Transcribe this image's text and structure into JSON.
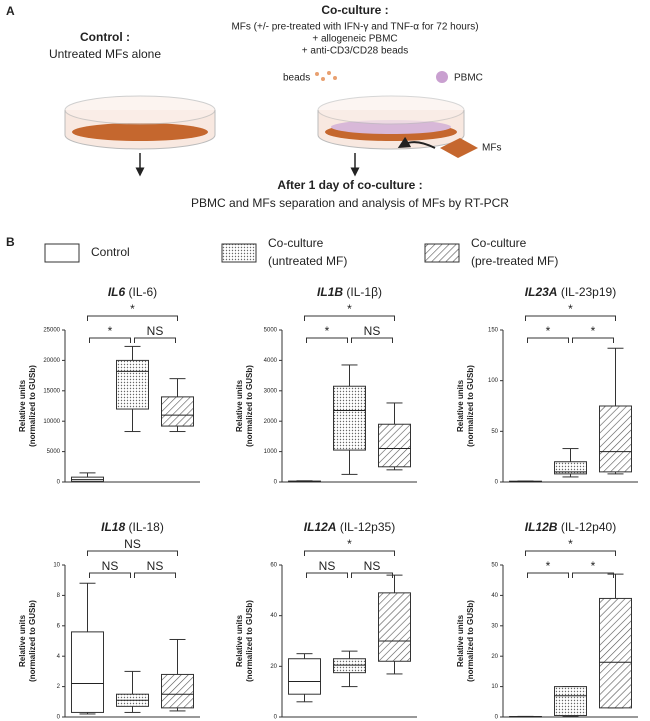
{
  "panel_a": {
    "label": "A",
    "control_title": "Control :",
    "control_text": "Untreated MFs alone",
    "coculture_title": "Co-culture :",
    "coculture_lines": [
      "MFs (+/- pre-treated with IFN-γ and TNF-α for 72 hours)",
      "+ allogeneic PBMC",
      "+ anti-CD3/CD28 beads"
    ],
    "beads": "beads",
    "pbmc": "PBMC",
    "mfs": "MFs",
    "after_title": "After 1 day of co-culture :",
    "after_text": "PBMC and MFs separation and analysis of MFs by RT-PCR"
  },
  "panel_b": {
    "label": "B",
    "legend": [
      {
        "name": [
          "Control"
        ],
        "pattern": "none"
      },
      {
        "name": [
          "Co-culture",
          "(untreated MF)"
        ],
        "pattern": "dots"
      },
      {
        "name": [
          "Co-culture",
          "(pre-treated MF)"
        ],
        "pattern": "hatch"
      }
    ]
  },
  "chart_data": [
    {
      "type": "box",
      "title": "IL6",
      "subtitle": "(IL-6)",
      "ylabel": [
        "Relative units",
        "(normalized to GUSb)"
      ],
      "categories": [
        null,
        null,
        null
      ],
      "ylim": [
        0,
        25000
      ],
      "yticks": [
        0,
        5000,
        10000,
        15000,
        20000,
        25000
      ],
      "boxes": [
        {
          "min": 0,
          "q1": 100,
          "median": 400,
          "q3": 800,
          "max": 1500
        },
        {
          "min": 8300,
          "q1": 12000,
          "median": 18200,
          "q3": 20000,
          "max": 22300
        },
        {
          "min": 8300,
          "q1": 9200,
          "median": 11000,
          "q3": 14000,
          "max": 17000
        }
      ],
      "comparisons": [
        {
          "groups": [
            0,
            1
          ],
          "label": "*"
        },
        {
          "groups": [
            1,
            2
          ],
          "label": "NS"
        },
        {
          "groups": [
            0,
            2
          ],
          "label": "*"
        }
      ]
    },
    {
      "type": "box",
      "title": "IL1B",
      "subtitle": "(IL-1β)",
      "ylabel": [
        "Relative units",
        "(normalized to GUSb)"
      ],
      "categories": [
        null,
        null,
        null
      ],
      "ylim": [
        0,
        5000
      ],
      "yticks": [
        0,
        1000,
        2000,
        3000,
        4000,
        5000
      ],
      "boxes": [
        {
          "min": 0,
          "q1": 10,
          "median": 20,
          "q3": 30,
          "max": 40
        },
        {
          "min": 250,
          "q1": 1050,
          "median": 2350,
          "q3": 3150,
          "max": 3850
        },
        {
          "min": 400,
          "q1": 500,
          "median": 1100,
          "q3": 1900,
          "max": 2600
        }
      ],
      "comparisons": [
        {
          "groups": [
            0,
            1
          ],
          "label": "*"
        },
        {
          "groups": [
            1,
            2
          ],
          "label": "NS"
        },
        {
          "groups": [
            0,
            2
          ],
          "label": "*"
        }
      ]
    },
    {
      "type": "box",
      "title": "IL23A",
      "subtitle": "(IL-23p19)",
      "ylabel": [
        "Relative units",
        "(normalized to GUSb)"
      ],
      "categories": [
        null,
        null,
        null
      ],
      "ylim": [
        0,
        150
      ],
      "yticks": [
        0,
        50,
        100,
        150
      ],
      "boxes": [
        {
          "min": 0,
          "q1": 0.2,
          "median": 0.5,
          "q3": 0.8,
          "max": 1
        },
        {
          "min": 5,
          "q1": 8,
          "median": 10,
          "q3": 20,
          "max": 33
        },
        {
          "min": 8,
          "q1": 10,
          "median": 30,
          "q3": 75,
          "max": 132
        }
      ],
      "comparisons": [
        {
          "groups": [
            0,
            1
          ],
          "label": "*"
        },
        {
          "groups": [
            1,
            2
          ],
          "label": "*"
        },
        {
          "groups": [
            0,
            2
          ],
          "label": "*"
        }
      ]
    },
    {
      "type": "box",
      "title": "IL18",
      "subtitle": "(IL-18)",
      "ylabel": [
        "Relative units",
        "(normalized to GUSb)"
      ],
      "categories": [
        null,
        null,
        null
      ],
      "ylim": [
        0,
        10
      ],
      "yticks": [
        0,
        2,
        4,
        6,
        8,
        10
      ],
      "boxes": [
        {
          "min": 0.2,
          "q1": 0.3,
          "median": 2.2,
          "q3": 5.6,
          "max": 8.8
        },
        {
          "min": 0.3,
          "q1": 0.7,
          "median": 1.1,
          "q3": 1.5,
          "max": 3
        },
        {
          "min": 0.4,
          "q1": 0.6,
          "median": 1.5,
          "q3": 2.8,
          "max": 5.1
        }
      ],
      "comparisons": [
        {
          "groups": [
            0,
            1
          ],
          "label": "NS"
        },
        {
          "groups": [
            1,
            2
          ],
          "label": "NS"
        },
        {
          "groups": [
            0,
            2
          ],
          "label": "NS"
        }
      ]
    },
    {
      "type": "box",
      "title": "IL12A",
      "subtitle": "(IL-12p35)",
      "ylabel": [
        "Relative units",
        "(normalized to GUSb)"
      ],
      "categories": [
        null,
        null,
        null
      ],
      "ylim": [
        0,
        60
      ],
      "yticks": [
        0,
        20,
        40,
        60
      ],
      "boxes": [
        {
          "min": 6,
          "q1": 9,
          "median": 14,
          "q3": 23,
          "max": 25
        },
        {
          "min": 12,
          "q1": 17.5,
          "median": 20.5,
          "q3": 23,
          "max": 26
        },
        {
          "min": 17,
          "q1": 22,
          "median": 30,
          "q3": 49,
          "max": 56
        }
      ],
      "comparisons": [
        {
          "groups": [
            0,
            1
          ],
          "label": "NS"
        },
        {
          "groups": [
            1,
            2
          ],
          "label": "NS"
        },
        {
          "groups": [
            0,
            2
          ],
          "label": "*"
        }
      ]
    },
    {
      "type": "box",
      "title": "IL12B",
      "subtitle": "(IL-12p40)",
      "ylabel": [
        "Relative units",
        "(normalized to GUSb)"
      ],
      "categories": [
        null,
        null,
        null
      ],
      "ylim": [
        0,
        50
      ],
      "yticks": [
        0,
        10,
        20,
        30,
        40,
        50
      ],
      "boxes": [
        {
          "min": 0,
          "q1": 0.05,
          "median": 0.1,
          "q3": 0.15,
          "max": 0.2
        },
        {
          "min": 0.2,
          "q1": 0.5,
          "median": 7,
          "q3": 10,
          "max": 10
        },
        {
          "min": 3,
          "q1": 3,
          "median": 18,
          "q3": 39,
          "max": 47
        }
      ],
      "comparisons": [
        {
          "groups": [
            0,
            1
          ],
          "label": "*"
        },
        {
          "groups": [
            1,
            2
          ],
          "label": "*"
        },
        {
          "groups": [
            0,
            2
          ],
          "label": "*"
        }
      ]
    }
  ]
}
